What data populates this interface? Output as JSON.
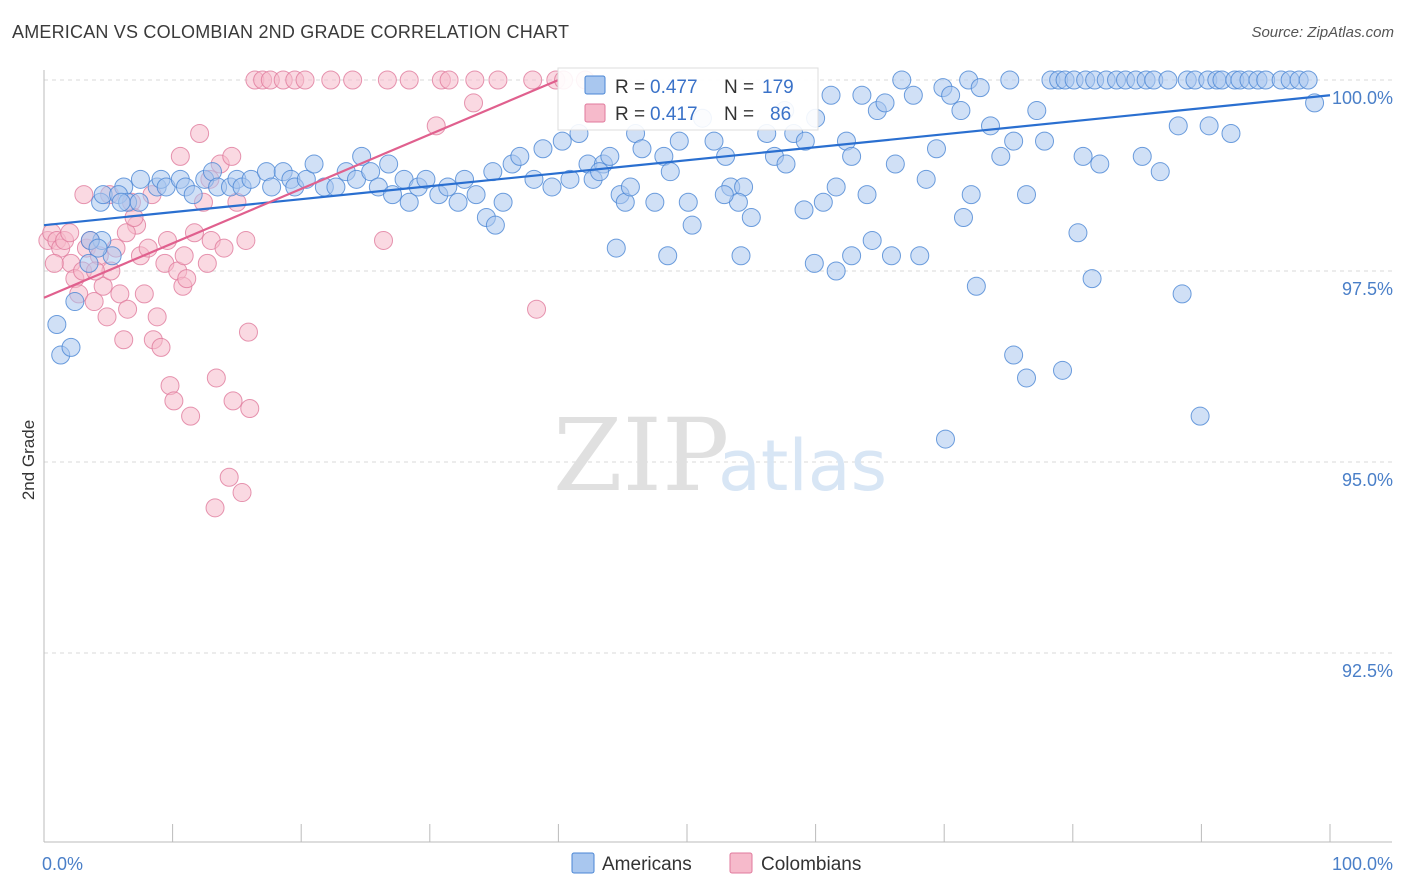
{
  "title": "AMERICAN VS COLOMBIAN 2ND GRADE CORRELATION CHART",
  "source": "Source: ZipAtlas.com",
  "watermark": {
    "zip": "ZIP",
    "atlas": "atlas"
  },
  "colors": {
    "blue_fill": "#a9c7ef",
    "blue_stroke": "#4a86d4",
    "blue_line": "#2a6fd0",
    "pink_fill": "#f6bacb",
    "pink_stroke": "#e07a9c",
    "pink_line": "#e0608e",
    "grid": "#d9d9d9",
    "axis": "#bbbbbb",
    "tick_text": "#4a7fc8"
  },
  "chart_data": {
    "type": "scatter",
    "xlabel": "",
    "ylabel": "2nd Grade",
    "xlim": [
      0,
      100
    ],
    "ylim": [
      90.0,
      100.5
    ],
    "x_tick_labels": [
      "0.0%",
      "100.0%"
    ],
    "y_ticks": [
      92.5,
      95.0,
      97.5,
      100.0
    ],
    "y_tick_labels": [
      "92.5%",
      "95.0%",
      "97.5%",
      "100.0%"
    ],
    "grid": "horizontal dashed",
    "legend_placement": "bottom-center",
    "stats": [
      {
        "series": "Americans",
        "r_label": "R =",
        "r": "0.477",
        "n_label": "N =",
        "n": "179"
      },
      {
        "series": "Colombians",
        "r_label": "R =",
        "r": "0.417",
        "n_label": "N =",
        "n": "86"
      }
    ],
    "series": [
      {
        "name": "Americans",
        "trend": {
          "x": [
            0,
            100
          ],
          "y": [
            98.1,
            99.8
          ]
        },
        "points": [
          [
            4.4,
            98.4
          ],
          [
            4.6,
            98.5
          ],
          [
            6.2,
            98.6
          ],
          [
            5.8,
            98.5
          ],
          [
            6.5,
            98.4
          ],
          [
            7.5,
            98.7
          ],
          [
            8.8,
            98.6
          ],
          [
            9.1,
            98.7
          ],
          [
            9.5,
            98.6
          ],
          [
            10.6,
            98.7
          ],
          [
            11.0,
            98.6
          ],
          [
            11.6,
            98.5
          ],
          [
            12.5,
            98.7
          ],
          [
            13.1,
            98.8
          ],
          [
            13.5,
            98.6
          ],
          [
            14.5,
            98.6
          ],
          [
            15.0,
            98.7
          ],
          [
            15.4,
            98.6
          ],
          [
            16.1,
            98.7
          ],
          [
            17.3,
            98.8
          ],
          [
            17.7,
            98.6
          ],
          [
            18.6,
            98.8
          ],
          [
            19.2,
            98.7
          ],
          [
            19.5,
            98.6
          ],
          [
            20.4,
            98.7
          ],
          [
            21.0,
            98.9
          ],
          [
            21.8,
            98.6
          ],
          [
            22.7,
            98.6
          ],
          [
            23.5,
            98.8
          ],
          [
            24.3,
            98.7
          ],
          [
            24.7,
            99.0
          ],
          [
            25.4,
            98.8
          ],
          [
            26.0,
            98.6
          ],
          [
            26.8,
            98.9
          ],
          [
            27.1,
            98.5
          ],
          [
            28.0,
            98.7
          ],
          [
            28.4,
            98.4
          ],
          [
            29.1,
            98.6
          ],
          [
            29.7,
            98.7
          ],
          [
            30.7,
            98.5
          ],
          [
            31.4,
            98.6
          ],
          [
            32.2,
            98.4
          ],
          [
            32.7,
            98.7
          ],
          [
            33.6,
            98.5
          ],
          [
            34.4,
            98.2
          ],
          [
            34.9,
            98.8
          ],
          [
            35.7,
            98.4
          ],
          [
            36.4,
            98.9
          ],
          [
            37.0,
            99.0
          ],
          [
            38.1,
            98.7
          ],
          [
            38.8,
            99.1
          ],
          [
            39.5,
            98.6
          ],
          [
            40.3,
            99.2
          ],
          [
            40.9,
            98.7
          ],
          [
            41.6,
            99.3
          ],
          [
            42.3,
            98.9
          ],
          [
            42.7,
            98.7
          ],
          [
            43.5,
            98.9
          ],
          [
            44.0,
            99.0
          ],
          [
            44.8,
            98.5
          ],
          [
            45.2,
            98.4
          ],
          [
            46.0,
            99.3
          ],
          [
            46.5,
            99.1
          ],
          [
            47.5,
            98.4
          ],
          [
            48.2,
            99.0
          ],
          [
            48.7,
            98.8
          ],
          [
            49.4,
            99.2
          ],
          [
            50.1,
            98.4
          ],
          [
            51.2,
            99.5
          ],
          [
            52.1,
            99.2
          ],
          [
            53.0,
            99.0
          ],
          [
            53.4,
            98.6
          ],
          [
            54.4,
            98.6
          ],
          [
            55.0,
            98.2
          ],
          [
            56.2,
            99.3
          ],
          [
            56.8,
            99.0
          ],
          [
            57.6,
            99.6
          ],
          [
            58.3,
            99.3
          ],
          [
            59.2,
            99.2
          ],
          [
            60.0,
            99.5
          ],
          [
            60.6,
            98.4
          ],
          [
            61.2,
            99.8
          ],
          [
            61.6,
            98.6
          ],
          [
            62.4,
            99.2
          ],
          [
            62.8,
            99.0
          ],
          [
            63.6,
            99.8
          ],
          [
            64.0,
            98.5
          ],
          [
            64.8,
            99.6
          ],
          [
            65.4,
            99.7
          ],
          [
            66.2,
            98.9
          ],
          [
            66.7,
            100.0
          ],
          [
            67.6,
            99.8
          ],
          [
            68.6,
            98.7
          ],
          [
            69.4,
            99.1
          ],
          [
            69.9,
            99.9
          ],
          [
            70.5,
            99.8
          ],
          [
            71.3,
            99.6
          ],
          [
            71.9,
            100.0
          ],
          [
            72.8,
            99.9
          ],
          [
            73.6,
            99.4
          ],
          [
            74.4,
            99.0
          ],
          [
            75.1,
            100.0
          ],
          [
            75.4,
            99.2
          ],
          [
            76.4,
            98.5
          ],
          [
            77.2,
            99.6
          ],
          [
            78.3,
            100.0
          ],
          [
            78.9,
            100.0
          ],
          [
            79.4,
            100.0
          ],
          [
            80.1,
            100.0
          ],
          [
            81.0,
            100.0
          ],
          [
            81.7,
            100.0
          ],
          [
            82.6,
            100.0
          ],
          [
            83.4,
            100.0
          ],
          [
            84.1,
            100.0
          ],
          [
            84.9,
            100.0
          ],
          [
            85.7,
            100.0
          ],
          [
            86.3,
            100.0
          ],
          [
            87.4,
            100.0
          ],
          [
            88.2,
            99.4
          ],
          [
            88.9,
            100.0
          ],
          [
            89.5,
            100.0
          ],
          [
            90.5,
            100.0
          ],
          [
            91.2,
            100.0
          ],
          [
            91.6,
            100.0
          ],
          [
            92.6,
            100.0
          ],
          [
            93.0,
            100.0
          ],
          [
            93.7,
            100.0
          ],
          [
            94.4,
            100.0
          ],
          [
            95.0,
            100.0
          ],
          [
            96.2,
            100.0
          ],
          [
            96.9,
            100.0
          ],
          [
            97.6,
            100.0
          ],
          [
            98.3,
            100.0
          ],
          [
            98.8,
            99.7
          ],
          [
            4.5,
            97.9
          ],
          [
            5.3,
            97.7
          ],
          [
            6.0,
            98.4
          ],
          [
            7.4,
            98.4
          ],
          [
            1.0,
            96.8
          ],
          [
            1.3,
            96.4
          ],
          [
            2.1,
            96.5
          ],
          [
            2.4,
            97.1
          ],
          [
            3.5,
            97.6
          ],
          [
            3.6,
            97.9
          ],
          [
            4.2,
            97.8
          ],
          [
            35.1,
            98.1
          ],
          [
            44.5,
            97.8
          ],
          [
            48.5,
            97.7
          ],
          [
            50.4,
            98.1
          ],
          [
            54.2,
            97.7
          ],
          [
            59.1,
            98.3
          ],
          [
            59.9,
            97.6
          ],
          [
            61.6,
            97.5
          ],
          [
            62.8,
            97.7
          ],
          [
            64.4,
            97.9
          ],
          [
            65.9,
            97.7
          ],
          [
            68.1,
            97.7
          ],
          [
            71.5,
            98.2
          ],
          [
            72.5,
            97.3
          ],
          [
            75.4,
            96.4
          ],
          [
            76.4,
            96.1
          ],
          [
            79.2,
            96.2
          ],
          [
            70.1,
            95.3
          ],
          [
            80.4,
            98.0
          ],
          [
            81.5,
            97.4
          ],
          [
            88.5,
            97.2
          ],
          [
            89.9,
            95.6
          ],
          [
            54.0,
            98.4
          ],
          [
            43.2,
            98.8
          ],
          [
            52.9,
            98.5
          ],
          [
            45.6,
            98.6
          ],
          [
            57.7,
            98.9
          ],
          [
            72.1,
            98.5
          ],
          [
            77.8,
            99.2
          ],
          [
            80.8,
            99.0
          ],
          [
            82.1,
            98.9
          ],
          [
            85.4,
            99.0
          ],
          [
            86.8,
            98.8
          ],
          [
            90.6,
            99.4
          ],
          [
            92.3,
            99.3
          ]
        ]
      },
      {
        "name": "Colombians",
        "trend": {
          "x": [
            0,
            40
          ],
          "y": [
            97.15,
            100.0
          ]
        },
        "points": [
          [
            0.3,
            97.9
          ],
          [
            0.6,
            98.0
          ],
          [
            1.0,
            97.9
          ],
          [
            1.3,
            97.8
          ],
          [
            1.6,
            97.9
          ],
          [
            2.1,
            97.6
          ],
          [
            2.4,
            97.4
          ],
          [
            2.7,
            97.2
          ],
          [
            3.0,
            97.5
          ],
          [
            3.3,
            97.8
          ],
          [
            3.6,
            97.9
          ],
          [
            3.9,
            97.1
          ],
          [
            4.3,
            97.7
          ],
          [
            4.6,
            97.3
          ],
          [
            4.9,
            96.9
          ],
          [
            5.2,
            97.5
          ],
          [
            5.6,
            97.8
          ],
          [
            5.9,
            97.2
          ],
          [
            6.2,
            96.6
          ],
          [
            6.5,
            97.0
          ],
          [
            6.8,
            98.4
          ],
          [
            7.2,
            98.1
          ],
          [
            7.5,
            97.7
          ],
          [
            7.8,
            97.2
          ],
          [
            8.1,
            97.8
          ],
          [
            8.5,
            96.6
          ],
          [
            8.8,
            96.9
          ],
          [
            9.1,
            96.5
          ],
          [
            9.4,
            97.6
          ],
          [
            9.8,
            96.0
          ],
          [
            10.1,
            95.8
          ],
          [
            10.4,
            97.5
          ],
          [
            10.8,
            97.3
          ],
          [
            11.1,
            97.4
          ],
          [
            11.4,
            95.6
          ],
          [
            11.7,
            98.0
          ],
          [
            12.1,
            99.3
          ],
          [
            12.4,
            98.4
          ],
          [
            12.7,
            97.6
          ],
          [
            13.0,
            97.9
          ],
          [
            13.4,
            96.1
          ],
          [
            13.7,
            98.9
          ],
          [
            14.0,
            97.8
          ],
          [
            14.4,
            94.8
          ],
          [
            14.7,
            95.8
          ],
          [
            15.0,
            98.4
          ],
          [
            15.4,
            94.6
          ],
          [
            15.7,
            97.9
          ],
          [
            16.0,
            95.7
          ],
          [
            16.4,
            100.0
          ],
          [
            17.0,
            100.0
          ],
          [
            17.6,
            100.0
          ],
          [
            18.6,
            100.0
          ],
          [
            19.5,
            100.0
          ],
          [
            20.3,
            100.0
          ],
          [
            22.3,
            100.0
          ],
          [
            24.0,
            100.0
          ],
          [
            26.7,
            100.0
          ],
          [
            28.4,
            100.0
          ],
          [
            30.9,
            100.0
          ],
          [
            31.5,
            100.0
          ],
          [
            33.5,
            100.0
          ],
          [
            35.3,
            100.0
          ],
          [
            38.0,
            100.0
          ],
          [
            39.8,
            100.0
          ],
          [
            40.4,
            100.0
          ],
          [
            42.1,
            100.0
          ],
          [
            26.4,
            97.9
          ],
          [
            30.5,
            99.4
          ],
          [
            33.4,
            99.7
          ],
          [
            38.3,
            97.0
          ],
          [
            10.6,
            99.0
          ],
          [
            5.1,
            98.5
          ],
          [
            6.4,
            98.0
          ],
          [
            8.4,
            98.5
          ],
          [
            9.6,
            97.9
          ],
          [
            10.9,
            97.7
          ],
          [
            12.9,
            98.7
          ],
          [
            14.6,
            99.0
          ],
          [
            3.1,
            98.5
          ],
          [
            13.3,
            94.4
          ],
          [
            15.9,
            96.7
          ],
          [
            2.0,
            98.0
          ],
          [
            0.8,
            97.6
          ],
          [
            4.0,
            97.5
          ],
          [
            7.0,
            98.2
          ]
        ]
      }
    ]
  },
  "legend": [
    {
      "label": "Americans",
      "color": "#a9c7ef"
    },
    {
      "label": "Colombians",
      "color": "#f6bacb"
    }
  ]
}
